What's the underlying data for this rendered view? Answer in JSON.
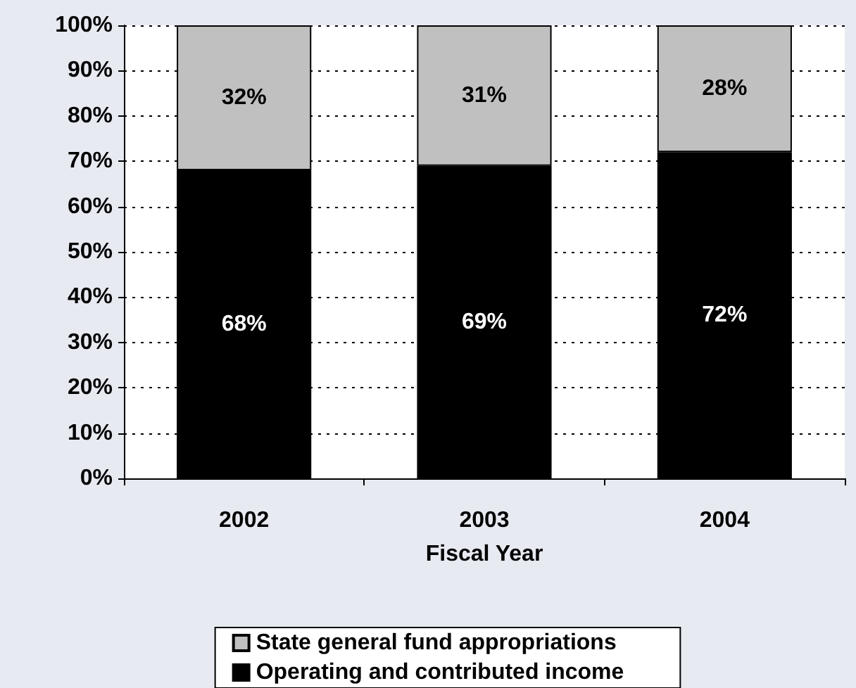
{
  "chart_data": {
    "type": "bar",
    "xlabel": "Fiscal Year",
    "categories": [
      "2002",
      "2003",
      "2004"
    ],
    "series": [
      {
        "name": "Operating and contributed income",
        "color": "#000000",
        "values": [
          68,
          69,
          72
        ],
        "value_labels": [
          "68%",
          "69%",
          "72%"
        ]
      },
      {
        "name": "State general fund appropriations",
        "color": "#c0c0c0",
        "values": [
          32,
          31,
          28
        ],
        "value_labels": [
          "32%",
          "31%",
          "28%"
        ]
      }
    ],
    "stacked": true,
    "ylim": [
      0,
      100
    ],
    "yticks": [
      {
        "value": 0,
        "label": "0%"
      },
      {
        "value": 10,
        "label": "10%"
      },
      {
        "value": 20,
        "label": "20%"
      },
      {
        "value": 30,
        "label": "30%"
      },
      {
        "value": 40,
        "label": "40%"
      },
      {
        "value": 50,
        "label": "50%"
      },
      {
        "value": 60,
        "label": "60%"
      },
      {
        "value": 70,
        "label": "70%"
      },
      {
        "value": 80,
        "label": "80%"
      },
      {
        "value": 90,
        "label": "90%"
      },
      {
        "value": 100,
        "label": "100%"
      }
    ],
    "grid": "y",
    "legend": "bottom"
  }
}
